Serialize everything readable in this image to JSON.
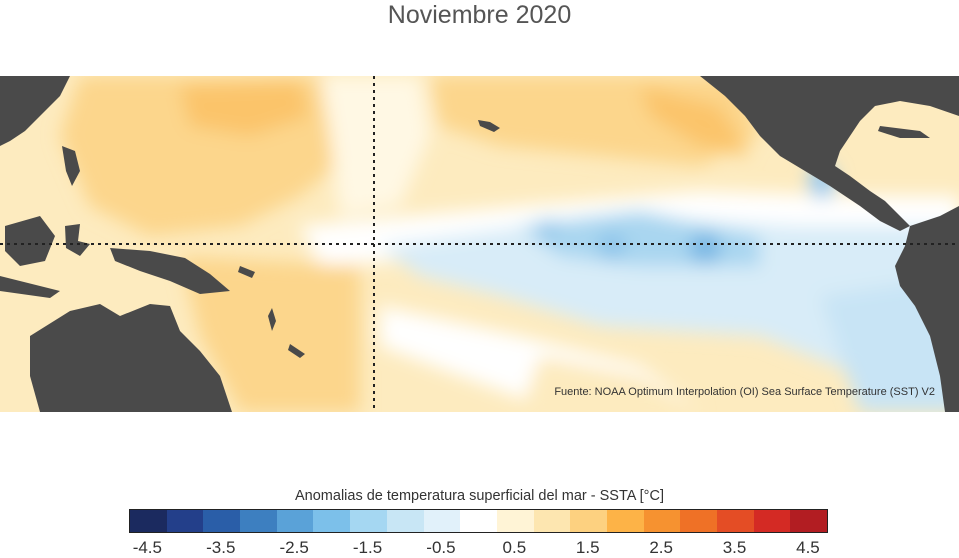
{
  "title": "Noviembre 2020",
  "source": "Fuente: NOAA Optimum Interpolation (OI) Sea Surface Temperature (SST) V2",
  "colorbar": {
    "title": "Anomalias de temperatura superficial del mar - SSTA  [°C]",
    "colors": [
      "#1b2a5f",
      "#233f8a",
      "#2a5ea8",
      "#3d7fc0",
      "#5aa2d8",
      "#7cc0ea",
      "#a5d7f2",
      "#c8e6f5",
      "#e1f1fa",
      "#ffffff",
      "#fff4d6",
      "#fde6b0",
      "#fdd180",
      "#fdb347",
      "#f69230",
      "#ef7126",
      "#e44d25",
      "#d42a24",
      "#b21d22"
    ],
    "tick_labels": [
      "-4.5",
      "-3.5",
      "-2.5",
      "-1.5",
      "-0.5",
      "0.5",
      "1.5",
      "2.5",
      "3.5",
      "4.5"
    ]
  },
  "map": {
    "land_color": "#4a4a4a",
    "reference_lines": [
      "equator-line",
      "dateline"
    ]
  }
}
